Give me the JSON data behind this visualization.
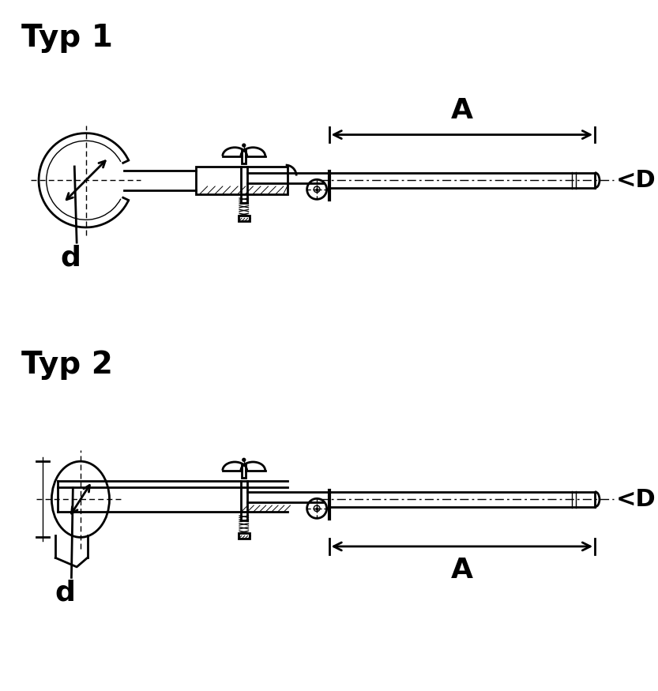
{
  "title1": "Typ 1",
  "title2": "Typ 2",
  "label_d": "d",
  "label_A": "A",
  "label_D": "<D",
  "bg_color": "#ffffff",
  "line_color": "#000000",
  "title_fontsize": 28,
  "label_fontsize": 22,
  "dim_fontsize": 26
}
